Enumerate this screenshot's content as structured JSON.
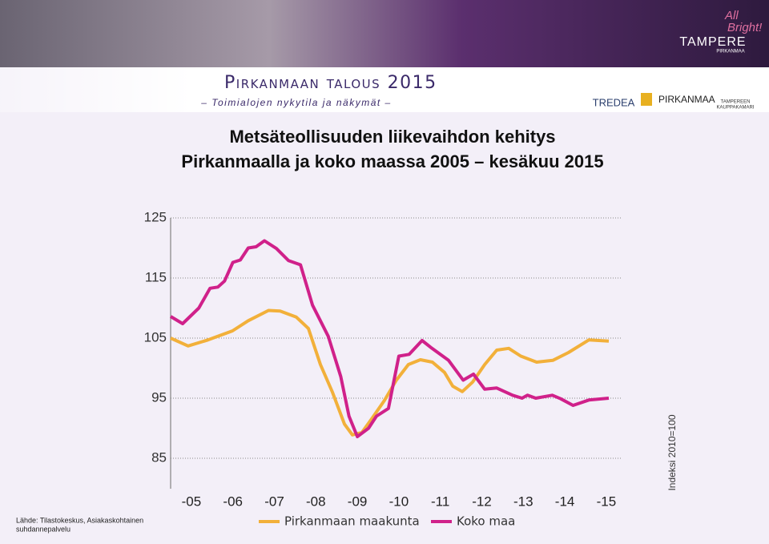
{
  "header": {
    "title": "Pirkanmaan talous 2015",
    "subtitle": "– Toimialojen nykytila ja näkymät –",
    "logos": [
      "TREDEA",
      "PIRKANMAA",
      "TAMPEREEN",
      "KAUPPAKAMARI",
      "All",
      "Bright!",
      "TAMPERE",
      "PIRKANMAA"
    ]
  },
  "source": [
    "Lähde: Tilastokeskus, Asiakaskohtainen",
    "suhdannepalvelu"
  ],
  "chart_data": {
    "type": "line",
    "title": [
      "Metsäteollisuuden liikevaihdon kehitys",
      "Pirkanmaalla ja koko maassa 2005 – kesäkuu 2015"
    ],
    "y_label": "Indeksi 2010=100",
    "xlim": [
      2005,
      2015.85
    ],
    "ylim": [
      80,
      125
    ],
    "xticks": [
      {
        "value": 2005.5,
        "label": "-05"
      },
      {
        "value": 2006.5,
        "label": "-06"
      },
      {
        "value": 2007.5,
        "label": "-07"
      },
      {
        "value": 2008.5,
        "label": "-08"
      },
      {
        "value": 2009.5,
        "label": "-09"
      },
      {
        "value": 2010.5,
        "label": "-10"
      },
      {
        "value": 2011.5,
        "label": "-11"
      },
      {
        "value": 2012.5,
        "label": "-12"
      },
      {
        "value": 2013.5,
        "label": "-13"
      },
      {
        "value": 2014.5,
        "label": "-14"
      },
      {
        "value": 2015.5,
        "label": "-15"
      }
    ],
    "yticks": [
      85,
      95,
      105,
      115,
      125
    ],
    "grid": true,
    "series": [
      {
        "name": "Pirkanmaan maakunta",
        "color": "#f2b03a",
        "x": [
          2005,
          2005.42,
          2005.9,
          2006.49,
          2006.87,
          2007.36,
          2007.64,
          2008.03,
          2008.32,
          2008.61,
          2008.9,
          2009.19,
          2009.38,
          2009.61,
          2009.86,
          2010.15,
          2010.44,
          2010.73,
          2011.02,
          2011.31,
          2011.6,
          2011.8,
          2012.03,
          2012.28,
          2012.57,
          2012.86,
          2013.15,
          2013.44,
          2013.82,
          2014.21,
          2014.59,
          2015.08,
          2015.56
        ],
        "values": [
          105,
          103.7,
          104.7,
          106.2,
          107.9,
          109.6,
          109.5,
          108.5,
          106.6,
          100.6,
          96,
          90.7,
          88.9,
          89.3,
          91.7,
          94.6,
          98,
          100.6,
          101.4,
          101,
          99.3,
          97,
          96.1,
          97.7,
          100.6,
          103,
          103.3,
          102,
          101,
          101.3,
          102.6,
          104.7,
          104.5
        ]
      },
      {
        "name": "Koko maa",
        "color": "#d0218a",
        "x": [
          2005,
          2005.29,
          2005.68,
          2005.95,
          2006.14,
          2006.3,
          2006.5,
          2006.68,
          2006.87,
          2007.06,
          2007.26,
          2007.55,
          2007.84,
          2008.13,
          2008.42,
          2008.8,
          2009.1,
          2009.3,
          2009.5,
          2009.77,
          2009.96,
          2010.25,
          2010.5,
          2010.75,
          2011.06,
          2011.3,
          2011.7,
          2012.05,
          2012.3,
          2012.57,
          2012.86,
          2013.24,
          2013.47,
          2013.6,
          2013.8,
          2014.2,
          2014.4,
          2014.7,
          2015.08,
          2015.56
        ],
        "values": [
          108.6,
          107.4,
          110,
          113.3,
          113.5,
          114.5,
          117.6,
          118,
          120,
          120.2,
          121.2,
          119.9,
          117.9,
          117.2,
          110.5,
          105.3,
          98.6,
          92,
          88.6,
          90,
          92,
          93.3,
          102,
          102.3,
          104.6,
          103.3,
          101.3,
          98,
          99,
          96.5,
          96.7,
          95.5,
          95,
          95.5,
          95,
          95.5,
          94.9,
          93.8,
          94.7,
          95
        ]
      }
    ]
  }
}
